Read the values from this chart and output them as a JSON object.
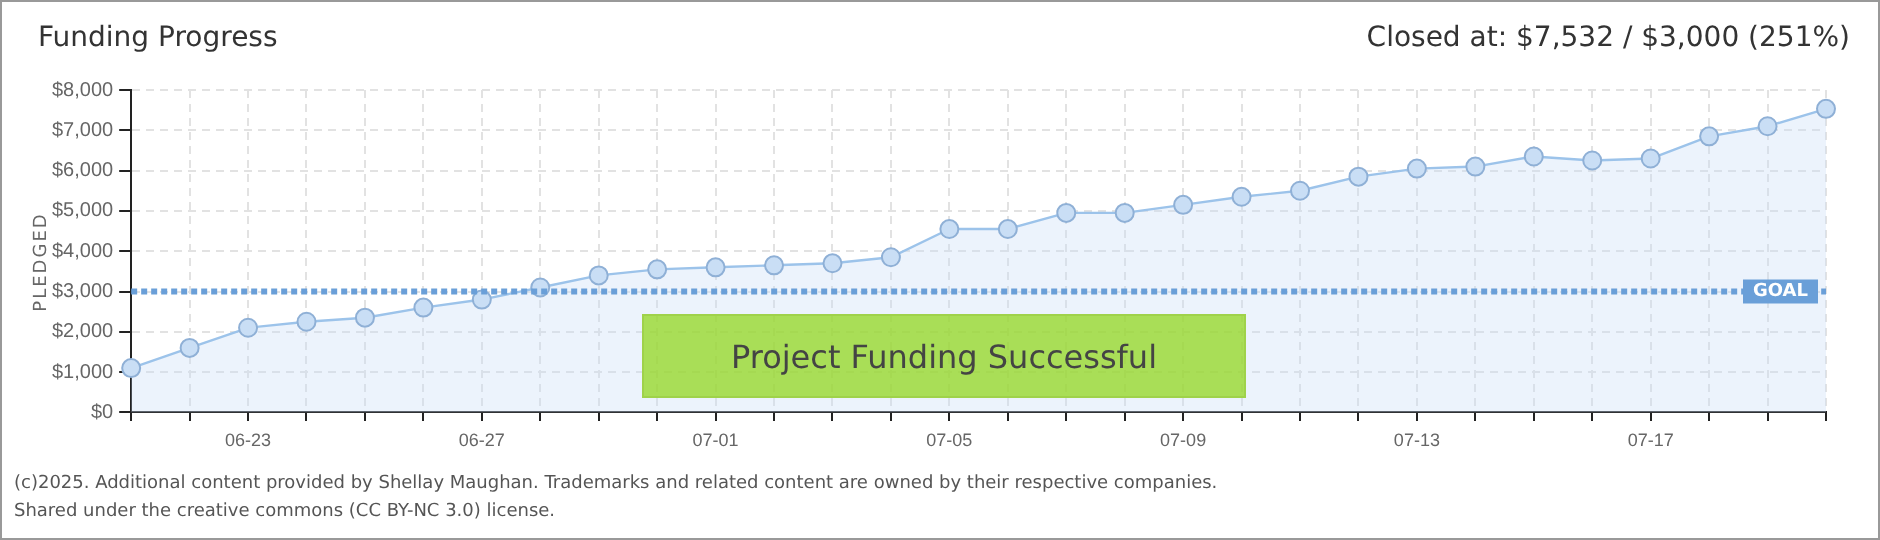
{
  "chart_data": {
    "type": "area",
    "title": "Funding Progress",
    "ylabel": "PLEDGED",
    "categories": [
      null,
      null,
      "06-23",
      null,
      null,
      null,
      "06-27",
      null,
      null,
      null,
      "07-01",
      null,
      null,
      null,
      "07-05",
      null,
      null,
      null,
      "07-09",
      null,
      null,
      null,
      "07-13",
      null,
      null,
      null,
      "07-17",
      null,
      null,
      null
    ],
    "series": [
      {
        "color": "#9cc3ea",
        "values": [
          1100,
          1600,
          2100,
          2250,
          2350,
          2600,
          2800,
          3100,
          3400,
          3550,
          3600,
          3650,
          3700,
          3850,
          4550,
          4550,
          4950,
          4950,
          5150,
          5350,
          5500,
          5850,
          6050,
          6100,
          6350,
          6250,
          6300,
          6850,
          7100,
          7532
        ]
      }
    ],
    "ylim": [
      0,
      8000
    ],
    "yticks": [
      {
        "value": 0,
        "label": "$0"
      },
      {
        "value": 1000,
        "label": "$1,000"
      },
      {
        "value": 2000,
        "label": "$2,000"
      },
      {
        "value": 3000,
        "label": "$3,000"
      },
      {
        "value": 4000,
        "label": "$4,000"
      },
      {
        "value": 5000,
        "label": "$5,000"
      },
      {
        "value": 6000,
        "label": "$6,000"
      },
      {
        "value": 7000,
        "label": "$7,000"
      },
      {
        "value": 8000,
        "label": "$8,000"
      }
    ],
    "ref_lines": [
      {
        "axis": "y",
        "value": 3000,
        "label": "GOAL",
        "color": "#6a9fd8",
        "line_style": "dotted"
      }
    ],
    "annotations": [
      "Closed at: $7,532 / $3,000 (251%)",
      "Project Funding Successful",
      "(c)2025. Additional content provided by Shellay Maughan. Trademarks and related content are owned by their respective companies.",
      "Shared under the creative commons (CC BY-NC 3.0) license."
    ],
    "grid": true,
    "marker": "circle",
    "legend": false
  }
}
